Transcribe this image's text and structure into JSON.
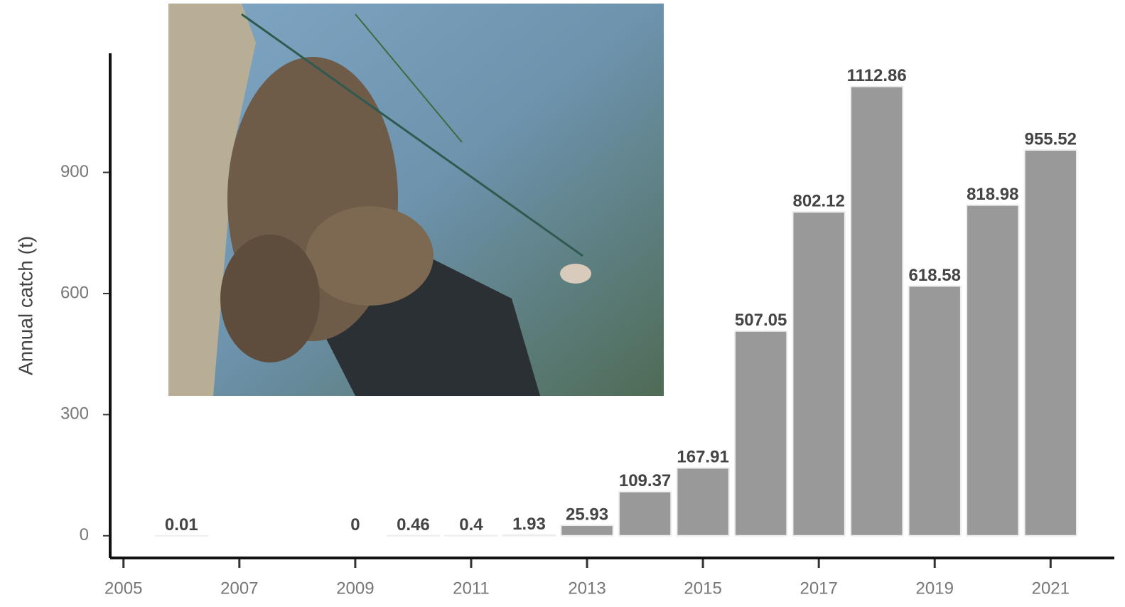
{
  "chart_data": {
    "type": "bar",
    "y_label": "Annual catch (t)",
    "x": [
      2006,
      2009,
      2010,
      2011,
      2012,
      2013,
      2014,
      2015,
      2016,
      2017,
      2018,
      2019,
      2020,
      2021
    ],
    "values": [
      0.01,
      0,
      0.46,
      0.4,
      1.93,
      25.93,
      109.37,
      167.91,
      507.05,
      802.12,
      1112.86,
      618.58,
      818.98,
      955.52
    ],
    "color": "#999999",
    "xlim": [
      2004.77,
      2022.1
    ],
    "xticks": [
      2005,
      2007,
      2009,
      2011,
      2013,
      2015,
      2017,
      2019,
      2021
    ],
    "ylim": [
      -55,
      1195
    ],
    "yticks": [
      0,
      300,
      600,
      900
    ],
    "grid": false
  }
}
